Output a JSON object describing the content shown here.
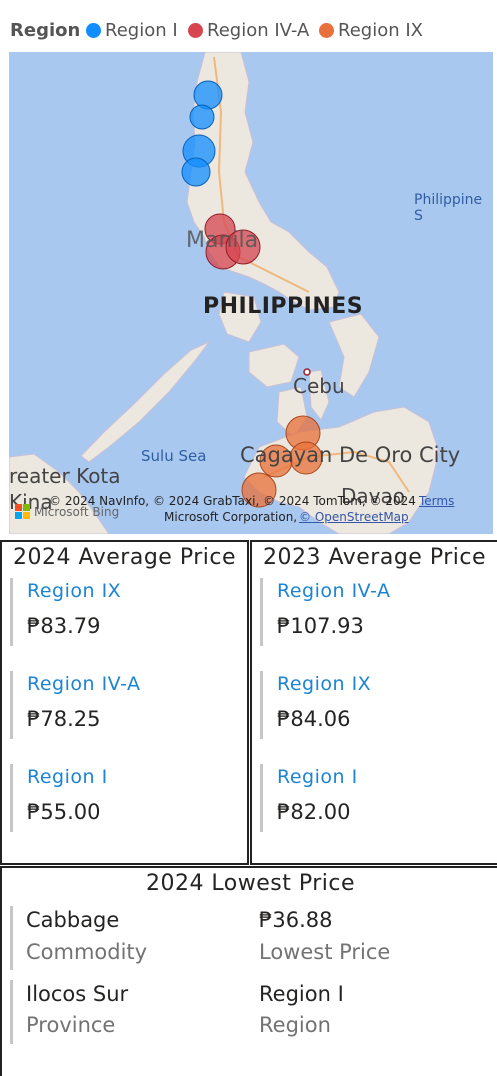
{
  "legend": {
    "title": "Region",
    "items": [
      {
        "label": "Region I",
        "color": "#118dff"
      },
      {
        "label": "Region IV-A",
        "color": "#d64550"
      },
      {
        "label": "Region IX",
        "color": "#e8703a"
      }
    ]
  },
  "map": {
    "labels": {
      "country": "PHILIPPINES",
      "sea_east": "Philippine S",
      "manila": "Manila",
      "cebu": "Cebu",
      "sulu": "Sulu Sea",
      "cagayan": "Cagayan De Oro City",
      "davao": "Davao",
      "kota": "reater Kota",
      "kina": "Kina"
    },
    "attribution_line1": "© 2024 NavInfo, © 2024 GrabTaxi, © 2024 TomTom, © 2024",
    "attribution_terms": "Terms",
    "attribution_line2a": "Microsoft Corporation,",
    "attribution_line2b": "© OpenStreetMap",
    "bing": "Microsoft Bing"
  },
  "card_2024": {
    "title": "2024 Average Price",
    "items": [
      {
        "label": "Region IX",
        "value": "₱83.79"
      },
      {
        "label": "Region IV-A",
        "value": "₱78.25"
      },
      {
        "label": "Region I",
        "value": "₱55.00"
      }
    ]
  },
  "card_2023": {
    "title": "2023 Average Price",
    "items": [
      {
        "label": "Region IV-A",
        "value": "₱107.93"
      },
      {
        "label": "Region IX",
        "value": "₱84.06"
      },
      {
        "label": "Region I",
        "value": "₱82.00"
      }
    ]
  },
  "lowest": {
    "title": "2024 Lowest Price",
    "rows": [
      {
        "left_value": "Cabbage",
        "left_cap": "Commodity",
        "right_value": "₱36.88",
        "right_cap": "Lowest Price"
      },
      {
        "left_value": "Ilocos Sur",
        "left_cap": "Province",
        "right_value": "Region I",
        "right_cap": "Region"
      }
    ]
  }
}
